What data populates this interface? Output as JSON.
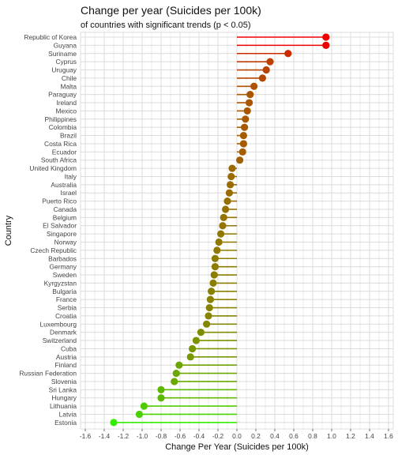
{
  "chart_data": {
    "type": "lollipop",
    "title": "Change per year (Suicides per 100k)",
    "subtitle": "of countries with significant trends (p < 0.05)",
    "xlabel": "Change Per Year (Suicides per 100k)",
    "ylabel": "Country",
    "xlim": [
      -1.65,
      1.65
    ],
    "xticks": [
      -1.6,
      -1.4,
      -1.2,
      -1.0,
      -0.8,
      -0.6,
      -0.4,
      -0.2,
      0.0,
      0.2,
      0.4,
      0.6,
      0.8,
      1.0,
      1.2,
      1.4,
      1.6
    ],
    "xtick_labels": [
      "-1.6",
      "-1.4",
      "-1.2",
      "-1.0",
      "-0.8",
      "-0.6",
      "-0.4",
      "-0.2",
      "0.0",
      "0.2",
      "0.4",
      "0.6",
      "0.8",
      "1.0",
      "1.2",
      "1.4",
      "1.6"
    ],
    "color_low": "#33ee00",
    "color_high": "#ee0000",
    "grid_color": "#dcdcdc",
    "categories": [
      "Republic of Korea",
      "Guyana",
      "Suriname",
      "Cyprus",
      "Uruguay",
      "Chile",
      "Malta",
      "Paraguay",
      "Ireland",
      "Mexico",
      "Philippines",
      "Colombia",
      "Brazil",
      "Costa Rica",
      "Ecuador",
      "South Africa",
      "United Kingdom",
      "Italy",
      "Australia",
      "Israel",
      "Puerto Rico",
      "Canada",
      "Belgium",
      "El Salvador",
      "Singapore",
      "Norway",
      "Czech Republic",
      "Barbados",
      "Germany",
      "Sweden",
      "Kyrgyzstan",
      "Bulgaria",
      "France",
      "Serbia",
      "Croatia",
      "Luxembourg",
      "Denmark",
      "Switzerland",
      "Cuba",
      "Austria",
      "Finland",
      "Russian Federation",
      "Slovenia",
      "Sri Lanka",
      "Hungary",
      "Lithuania",
      "Latvia",
      "Estonia"
    ],
    "values": [
      0.94,
      0.94,
      0.54,
      0.35,
      0.31,
      0.27,
      0.18,
      0.14,
      0.13,
      0.11,
      0.09,
      0.08,
      0.07,
      0.07,
      0.06,
      0.03,
      -0.05,
      -0.06,
      -0.07,
      -0.08,
      -0.1,
      -0.12,
      -0.14,
      -0.15,
      -0.17,
      -0.19,
      -0.21,
      -0.23,
      -0.23,
      -0.24,
      -0.25,
      -0.27,
      -0.28,
      -0.29,
      -0.3,
      -0.32,
      -0.38,
      -0.43,
      -0.47,
      -0.49,
      -0.61,
      -0.64,
      -0.66,
      -0.8,
      -0.8,
      -0.98,
      -1.03,
      -1.3
    ]
  }
}
